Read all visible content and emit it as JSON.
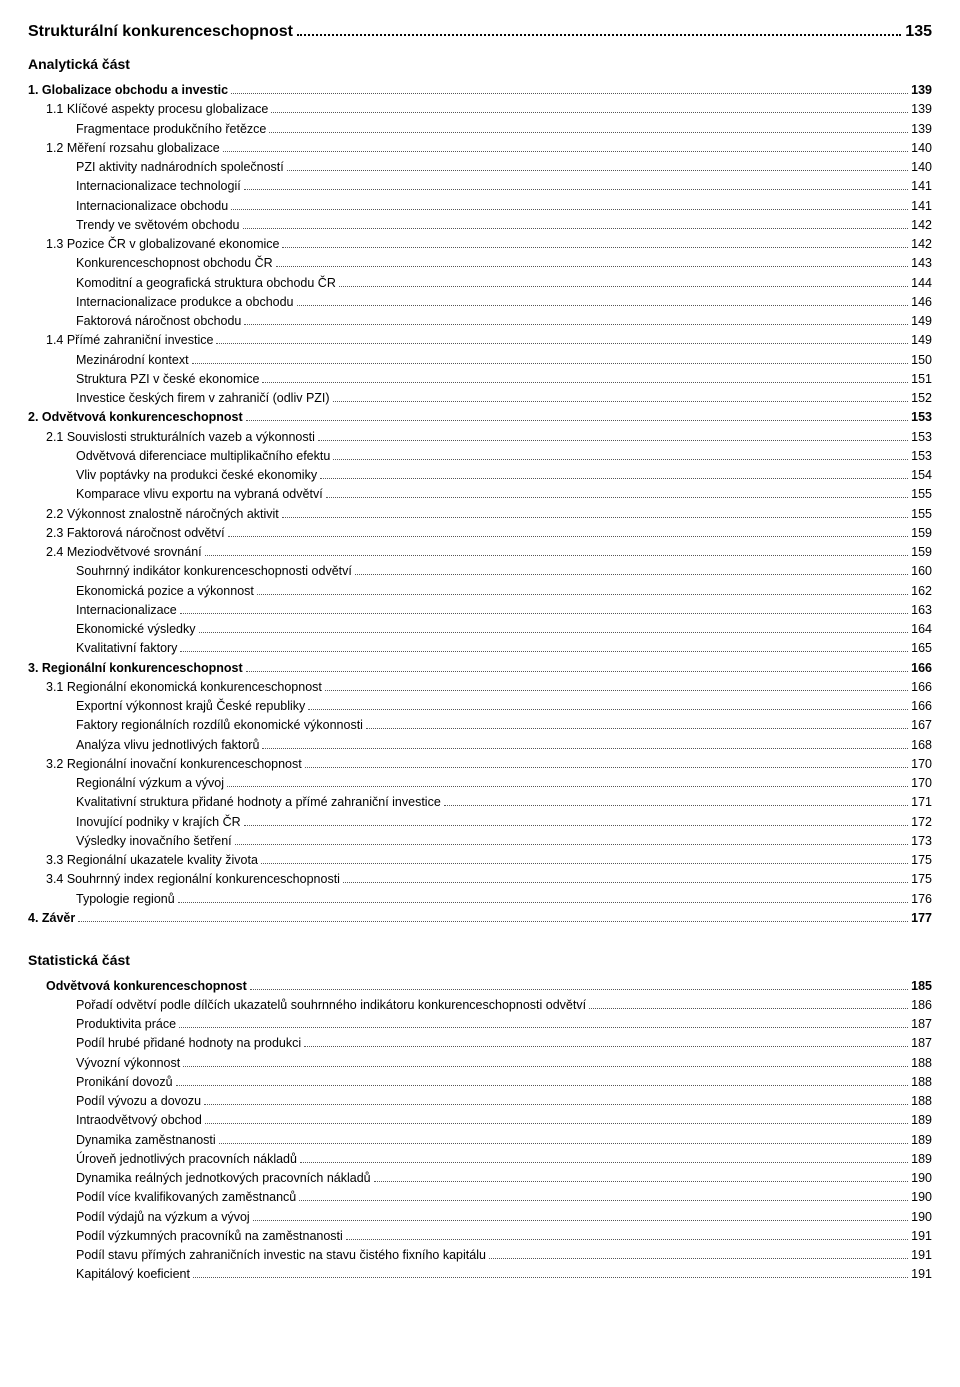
{
  "heading": {
    "label": "Strukturální konkurenceschopnost",
    "page": "135"
  },
  "section_analytic": "Analytická část",
  "section_stat": "Statistická část",
  "toc_analytic": [
    {
      "label": "1.   Globalizace obchodu a investic",
      "page": "139",
      "bold": true,
      "lvl": 0
    },
    {
      "label": "1.1 Klíčové aspekty procesu globalizace",
      "page": "139",
      "bold": false,
      "lvl": 1
    },
    {
      "label": "Fragmentace produkčního řetězce",
      "page": "139",
      "bold": false,
      "lvl": 2
    },
    {
      "label": "1.2 Měření rozsahu globalizace",
      "page": "140",
      "bold": false,
      "lvl": 1
    },
    {
      "label": "PZI aktivity nadnárodních společností",
      "page": "140",
      "bold": false,
      "lvl": 2
    },
    {
      "label": "Internacionalizace technologií",
      "page": "141",
      "bold": false,
      "lvl": 2
    },
    {
      "label": "Internacionalizace obchodu",
      "page": "141",
      "bold": false,
      "lvl": 2
    },
    {
      "label": "Trendy ve světovém obchodu",
      "page": "142",
      "bold": false,
      "lvl": 2
    },
    {
      "label": "1.3 Pozice ČR v globalizované ekonomice",
      "page": "142",
      "bold": false,
      "lvl": 1
    },
    {
      "label": "Konkurenceschopnost obchodu ČR",
      "page": "143",
      "bold": false,
      "lvl": 2
    },
    {
      "label": "Komoditní a geografická struktura obchodu ČR",
      "page": "144",
      "bold": false,
      "lvl": 2
    },
    {
      "label": "Internacionalizace produkce a obchodu",
      "page": "146",
      "bold": false,
      "lvl": 2
    },
    {
      "label": "Faktorová náročnost obchodu",
      "page": "149",
      "bold": false,
      "lvl": 2
    },
    {
      "label": "1.4 Přímé zahraniční investice",
      "page": "149",
      "bold": false,
      "lvl": 1
    },
    {
      "label": "Mezinárodní kontext",
      "page": "150",
      "bold": false,
      "lvl": 2
    },
    {
      "label": "Struktura PZI v české ekonomice",
      "page": "151",
      "bold": false,
      "lvl": 2
    },
    {
      "label": "Investice českých firem v zahraničí (odliv PZI)",
      "page": "152",
      "bold": false,
      "lvl": 2
    },
    {
      "label": "2.   Odvětvová konkurenceschopnost",
      "page": "153",
      "bold": true,
      "lvl": 0
    },
    {
      "label": "2.1 Souvislosti strukturálních vazeb a výkonnosti",
      "page": "153",
      "bold": false,
      "lvl": 1
    },
    {
      "label": "Odvětvová diferenciace multiplikačního efektu",
      "page": "153",
      "bold": false,
      "lvl": 2
    },
    {
      "label": "Vliv poptávky na produkci české ekonomiky",
      "page": "154",
      "bold": false,
      "lvl": 2
    },
    {
      "label": "Komparace vlivu exportu na vybraná odvětví",
      "page": "155",
      "bold": false,
      "lvl": 2
    },
    {
      "label": "2.2 Výkonnost znalostně náročných aktivit",
      "page": "155",
      "bold": false,
      "lvl": 1
    },
    {
      "label": "2.3 Faktorová náročnost odvětví",
      "page": "159",
      "bold": false,
      "lvl": 1
    },
    {
      "label": "2.4 Meziodvětvové srovnání",
      "page": "159",
      "bold": false,
      "lvl": 1
    },
    {
      "label": "Souhrnný indikátor konkurenceschopnosti odvětví",
      "page": "160",
      "bold": false,
      "lvl": 2
    },
    {
      "label": "Ekonomická pozice a výkonnost",
      "page": "162",
      "bold": false,
      "lvl": 2
    },
    {
      "label": "Internacionalizace",
      "page": "163",
      "bold": false,
      "lvl": 2
    },
    {
      "label": "Ekonomické výsledky",
      "page": "164",
      "bold": false,
      "lvl": 2
    },
    {
      "label": "Kvalitativní faktory",
      "page": "165",
      "bold": false,
      "lvl": 2
    },
    {
      "label": "3.   Regionální konkurenceschopnost",
      "page": "166",
      "bold": true,
      "lvl": 0
    },
    {
      "label": "3.1 Regionální ekonomická konkurenceschopnost",
      "page": "166",
      "bold": false,
      "lvl": 1
    },
    {
      "label": "Exportní výkonnost krajů České republiky",
      "page": "166",
      "bold": false,
      "lvl": 2
    },
    {
      "label": "Faktory regionálních rozdílů ekonomické výkonnosti",
      "page": "167",
      "bold": false,
      "lvl": 2
    },
    {
      "label": "Analýza vlivu jednotlivých faktorů",
      "page": "168",
      "bold": false,
      "lvl": 2
    },
    {
      "label": "3.2 Regionální inovační konkurenceschopnost",
      "page": "170",
      "bold": false,
      "lvl": 1
    },
    {
      "label": "Regionální výzkum a vývoj",
      "page": "170",
      "bold": false,
      "lvl": 2
    },
    {
      "label": "Kvalitativní struktura přidané hodnoty a přímé zahraniční investice",
      "page": "171",
      "bold": false,
      "lvl": 2
    },
    {
      "label": "Inovující podniky v krajích ČR",
      "page": "172",
      "bold": false,
      "lvl": 2
    },
    {
      "label": "Výsledky inovačního šetření",
      "page": "173",
      "bold": false,
      "lvl": 2
    },
    {
      "label": "3.3 Regionální ukazatele kvality života",
      "page": "175",
      "bold": false,
      "lvl": 1
    },
    {
      "label": "3.4 Souhrnný index regionální konkurenceschopnosti",
      "page": "175",
      "bold": false,
      "lvl": 1
    },
    {
      "label": "Typologie regionů",
      "page": "176",
      "bold": false,
      "lvl": 2
    },
    {
      "label": "4.   Závěr",
      "page": "177",
      "bold": true,
      "lvl": 0
    }
  ],
  "toc_stat": [
    {
      "label": "Odvětvová konkurenceschopnost",
      "page": "185",
      "bold": true,
      "lvl": 1
    },
    {
      "label": "Pořadí odvětví podle dílčích ukazatelů souhrnného indikátoru konkurenceschopnosti odvětví",
      "page": "186",
      "bold": false,
      "lvl": 2
    },
    {
      "label": "Produktivita práce",
      "page": "187",
      "bold": false,
      "lvl": 2
    },
    {
      "label": "Podíl hrubé přidané hodnoty na produkci",
      "page": "187",
      "bold": false,
      "lvl": 2
    },
    {
      "label": "Vývozní výkonnost",
      "page": "188",
      "bold": false,
      "lvl": 2
    },
    {
      "label": "Pronikání dovozů",
      "page": "188",
      "bold": false,
      "lvl": 2
    },
    {
      "label": "Podíl vývozu a dovozu",
      "page": "188",
      "bold": false,
      "lvl": 2
    },
    {
      "label": "Intraodvětvový obchod",
      "page": "189",
      "bold": false,
      "lvl": 2
    },
    {
      "label": "Dynamika zaměstnanosti",
      "page": "189",
      "bold": false,
      "lvl": 2
    },
    {
      "label": "Úroveň jednotlivých pracovních nákladů",
      "page": "189",
      "bold": false,
      "lvl": 2
    },
    {
      "label": "Dynamika reálných jednotkových pracovních nákladů",
      "page": "190",
      "bold": false,
      "lvl": 2
    },
    {
      "label": "Podíl více kvalifikovaných zaměstnanců",
      "page": "190",
      "bold": false,
      "lvl": 2
    },
    {
      "label": "Podíl výdajů na výzkum a vývoj",
      "page": "190",
      "bold": false,
      "lvl": 2
    },
    {
      "label": "Podíl výzkumných pracovníků na zaměstnanosti",
      "page": "191",
      "bold": false,
      "lvl": 2
    },
    {
      "label": "Podíl stavu přímých zahraničních investic na stavu čistého fixního kapitálu",
      "page": "191",
      "bold": false,
      "lvl": 2
    },
    {
      "label": "Kapitálový koeficient",
      "page": "191",
      "bold": false,
      "lvl": 2
    }
  ]
}
